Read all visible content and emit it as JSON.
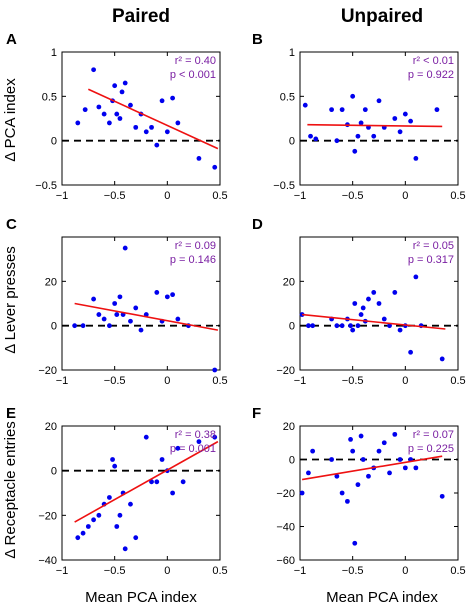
{
  "column_titles": [
    "Paired",
    "Unpaired"
  ],
  "row_ylabels": [
    "Δ PCA index",
    "Δ Lever presses",
    "Δ Receptacle entries"
  ],
  "xlabels": [
    "Mean PCA index",
    "Mean PCA index"
  ],
  "colors": {
    "points": "#0000ee",
    "fit": "#ee1111",
    "stats": "#7a1fa2",
    "zero_line": "#000000"
  },
  "chart_data": [
    {
      "type": "scatter",
      "panel": "A",
      "column": "Paired",
      "ylabel": "Δ PCA index",
      "xlim": [
        -1,
        0.5
      ],
      "ylim": [
        -0.5,
        1
      ],
      "xticks": [
        -1,
        -0.5,
        0,
        0.5
      ],
      "xtick_labels": [
        "−1",
        "−0.5",
        "0",
        "0.5"
      ],
      "yticks": [
        -0.5,
        0,
        0.5,
        1
      ],
      "ytick_labels": [
        "−0.5",
        "0",
        "0.5",
        "1"
      ],
      "zero_line": 0,
      "stats": [
        "r² = 0.40",
        "p < 0.001"
      ],
      "fit": {
        "x": [
          -0.75,
          0.48
        ],
        "y": [
          0.58,
          -0.09
        ]
      },
      "x": [
        -0.85,
        -0.78,
        -0.7,
        -0.65,
        -0.6,
        -0.55,
        -0.52,
        -0.5,
        -0.48,
        -0.45,
        -0.43,
        -0.4,
        -0.35,
        -0.3,
        -0.25,
        -0.2,
        -0.15,
        -0.1,
        -0.05,
        0.0,
        0.05,
        0.1,
        0.3,
        0.45
      ],
      "y": [
        0.2,
        0.35,
        0.8,
        0.38,
        0.3,
        0.2,
        0.45,
        0.62,
        0.3,
        0.25,
        0.55,
        0.65,
        0.4,
        0.15,
        0.3,
        0.1,
        0.15,
        -0.05,
        0.45,
        0.1,
        0.48,
        0.2,
        -0.2,
        -0.3
      ]
    },
    {
      "type": "scatter",
      "panel": "B",
      "column": "Unpaired",
      "ylabel": "",
      "xlim": [
        -1,
        0.5
      ],
      "ylim": [
        -0.5,
        1
      ],
      "xticks": [
        -1,
        -0.5,
        0,
        0.5
      ],
      "xtick_labels": [
        "−1",
        "−0.5",
        "0",
        "0.5"
      ],
      "yticks": [
        -0.5,
        0,
        0.5,
        1
      ],
      "ytick_labels": [
        "−0.5",
        "0",
        "0.5",
        "1"
      ],
      "zero_line": 0,
      "stats": [
        "r² < 0.01",
        "p = 0.922"
      ],
      "fit": {
        "x": [
          -0.93,
          0.35
        ],
        "y": [
          0.18,
          0.16
        ]
      },
      "x": [
        -0.95,
        -0.9,
        -0.85,
        -0.7,
        -0.65,
        -0.6,
        -0.55,
        -0.5,
        -0.48,
        -0.45,
        -0.42,
        -0.38,
        -0.35,
        -0.3,
        -0.25,
        -0.2,
        -0.1,
        -0.05,
        0.0,
        0.05,
        0.1,
        0.3
      ],
      "y": [
        0.4,
        0.05,
        0.02,
        0.35,
        0.0,
        0.35,
        0.18,
        0.5,
        -0.12,
        0.05,
        0.2,
        0.35,
        0.15,
        0.05,
        0.45,
        0.15,
        0.25,
        0.1,
        0.3,
        0.22,
        -0.2,
        0.35
      ]
    },
    {
      "type": "scatter",
      "panel": "C",
      "column": "Paired",
      "ylabel": "Δ Lever presses",
      "xlim": [
        -1,
        0.5
      ],
      "ylim": [
        -20,
        40
      ],
      "xticks": [
        -1,
        -0.5,
        0,
        0.5
      ],
      "xtick_labels": [
        "−1",
        "−0.5",
        "0",
        "0.5"
      ],
      "yticks": [
        -20,
        0,
        20
      ],
      "ytick_labels": [
        "−20",
        "0",
        "20"
      ],
      "zero_line": 0,
      "stats": [
        "r² = 0.09",
        "p = 0.146"
      ],
      "fit": {
        "x": [
          -0.88,
          0.48
        ],
        "y": [
          10,
          -2
        ]
      },
      "x": [
        -0.88,
        -0.8,
        -0.7,
        -0.65,
        -0.6,
        -0.55,
        -0.5,
        -0.48,
        -0.45,
        -0.42,
        -0.4,
        -0.35,
        -0.3,
        -0.25,
        -0.2,
        -0.1,
        -0.05,
        0.0,
        0.05,
        0.1,
        0.2,
        0.45
      ],
      "y": [
        0,
        0,
        12,
        5,
        3,
        0,
        10,
        5,
        13,
        5,
        35,
        2,
        8,
        -2,
        5,
        15,
        2,
        13,
        14,
        3,
        0,
        -20
      ]
    },
    {
      "type": "scatter",
      "panel": "D",
      "column": "Unpaired",
      "ylabel": "",
      "xlim": [
        -1,
        0.5
      ],
      "ylim": [
        -20,
        40
      ],
      "xticks": [
        -1,
        -0.5,
        0,
        0.5
      ],
      "xtick_labels": [
        "−1",
        "−0.5",
        "0",
        "0.5"
      ],
      "yticks": [
        -20,
        0,
        20
      ],
      "ytick_labels": [
        "−20",
        "0",
        "20"
      ],
      "zero_line": 0,
      "stats": [
        "r² = 0.05",
        "p = 0.317"
      ],
      "fit": {
        "x": [
          -0.98,
          0.38
        ],
        "y": [
          5,
          -1.5
        ]
      },
      "x": [
        -0.98,
        -0.92,
        -0.88,
        -0.7,
        -0.65,
        -0.6,
        -0.55,
        -0.52,
        -0.5,
        -0.48,
        -0.45,
        -0.42,
        -0.4,
        -0.38,
        -0.35,
        -0.3,
        -0.25,
        -0.2,
        -0.15,
        -0.1,
        -0.05,
        0.0,
        0.05,
        0.1,
        0.15,
        0.35
      ],
      "y": [
        5,
        0,
        0,
        3,
        0,
        0,
        3,
        0,
        -2,
        10,
        0,
        5,
        8,
        2,
        12,
        15,
        10,
        3,
        0,
        15,
        -2,
        0,
        -12,
        22,
        0,
        -15
      ]
    },
    {
      "type": "scatter",
      "panel": "E",
      "column": "Paired",
      "ylabel": "Δ Receptacle entries",
      "xlim": [
        -1,
        0.5
      ],
      "ylim": [
        -40,
        20
      ],
      "xticks": [
        -1,
        -0.5,
        0,
        0.5
      ],
      "xtick_labels": [
        "−1",
        "−0.5",
        "0",
        "0.5"
      ],
      "yticks": [
        -40,
        -20,
        0,
        20
      ],
      "ytick_labels": [
        "−40",
        "−20",
        "0",
        "20"
      ],
      "zero_line": 0,
      "stats": [
        "r² = 0.38",
        "p = 0.001"
      ],
      "fit": {
        "x": [
          -0.88,
          0.48
        ],
        "y": [
          -23,
          13
        ]
      },
      "x": [
        -0.85,
        -0.8,
        -0.75,
        -0.7,
        -0.65,
        -0.6,
        -0.55,
        -0.52,
        -0.5,
        -0.48,
        -0.45,
        -0.42,
        -0.4,
        -0.35,
        -0.3,
        -0.2,
        -0.15,
        -0.1,
        -0.05,
        0.0,
        0.05,
        0.1,
        0.15,
        0.3,
        0.45
      ],
      "y": [
        -30,
        -28,
        -25,
        -22,
        -20,
        -15,
        -12,
        5,
        2,
        -25,
        -20,
        -10,
        -35,
        -15,
        -30,
        15,
        -5,
        -5,
        5,
        0,
        -10,
        10,
        -5,
        13,
        15
      ]
    },
    {
      "type": "scatter",
      "panel": "F",
      "column": "Unpaired",
      "ylabel": "",
      "xlim": [
        -1,
        0.5
      ],
      "ylim": [
        -60,
        20
      ],
      "xticks": [
        -1,
        -0.5,
        0,
        0.5
      ],
      "xtick_labels": [
        "−1",
        "−0.5",
        "0",
        "0.5"
      ],
      "yticks": [
        -60,
        -40,
        -20,
        0,
        20
      ],
      "ytick_labels": [
        "−60",
        "−40",
        "−20",
        "0",
        "20"
      ],
      "zero_line": 0,
      "stats": [
        "r² = 0.07",
        "p = 0.225"
      ],
      "fit": {
        "x": [
          -0.98,
          0.35
        ],
        "y": [
          -12,
          2
        ]
      },
      "x": [
        -0.98,
        -0.92,
        -0.88,
        -0.7,
        -0.65,
        -0.6,
        -0.55,
        -0.52,
        -0.5,
        -0.48,
        -0.45,
        -0.42,
        -0.4,
        -0.35,
        -0.3,
        -0.25,
        -0.2,
        -0.15,
        -0.1,
        -0.05,
        0.0,
        0.05,
        0.1,
        0.35
      ],
      "y": [
        -20,
        -8,
        5,
        0,
        -10,
        -20,
        -25,
        12,
        5,
        -50,
        -15,
        14,
        0,
        -10,
        -5,
        5,
        10,
        -8,
        15,
        0,
        -5,
        0,
        -5,
        -22
      ]
    }
  ]
}
